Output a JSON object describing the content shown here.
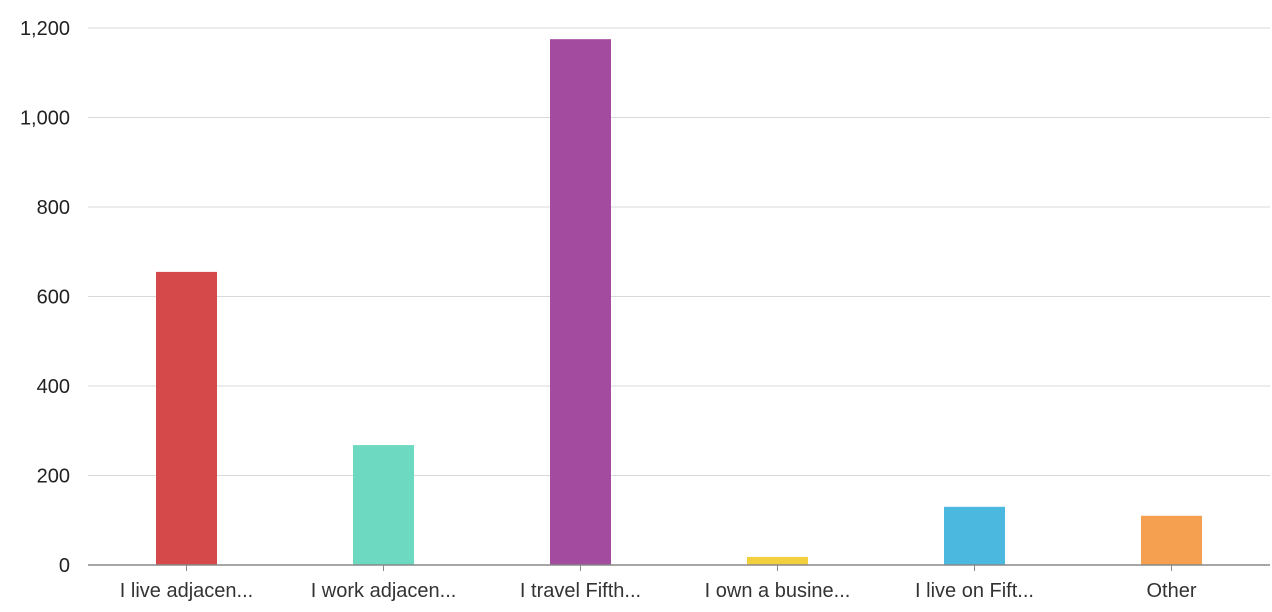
{
  "chart_data": {
    "type": "bar",
    "title": "",
    "xlabel": "",
    "ylabel": "",
    "ylim": [
      0,
      1200
    ],
    "yticks": [
      0,
      200,
      400,
      600,
      800,
      1000,
      1200
    ],
    "ytick_labels": [
      "0",
      "200",
      "400",
      "600",
      "800",
      "1,000",
      "1,200"
    ],
    "grid": true,
    "legend": "none",
    "categories": [
      "I live adjacen...",
      "I work adjacen...",
      "I travel Fifth...",
      "I own a busine...",
      "I live on Fift...",
      "Other"
    ],
    "values": [
      655,
      268,
      1175,
      18,
      130,
      110
    ],
    "colors": [
      "#d6494b",
      "#6dd9c0",
      "#a24b9f",
      "#f2cf3c",
      "#4bb8e0",
      "#f5a050"
    ]
  }
}
